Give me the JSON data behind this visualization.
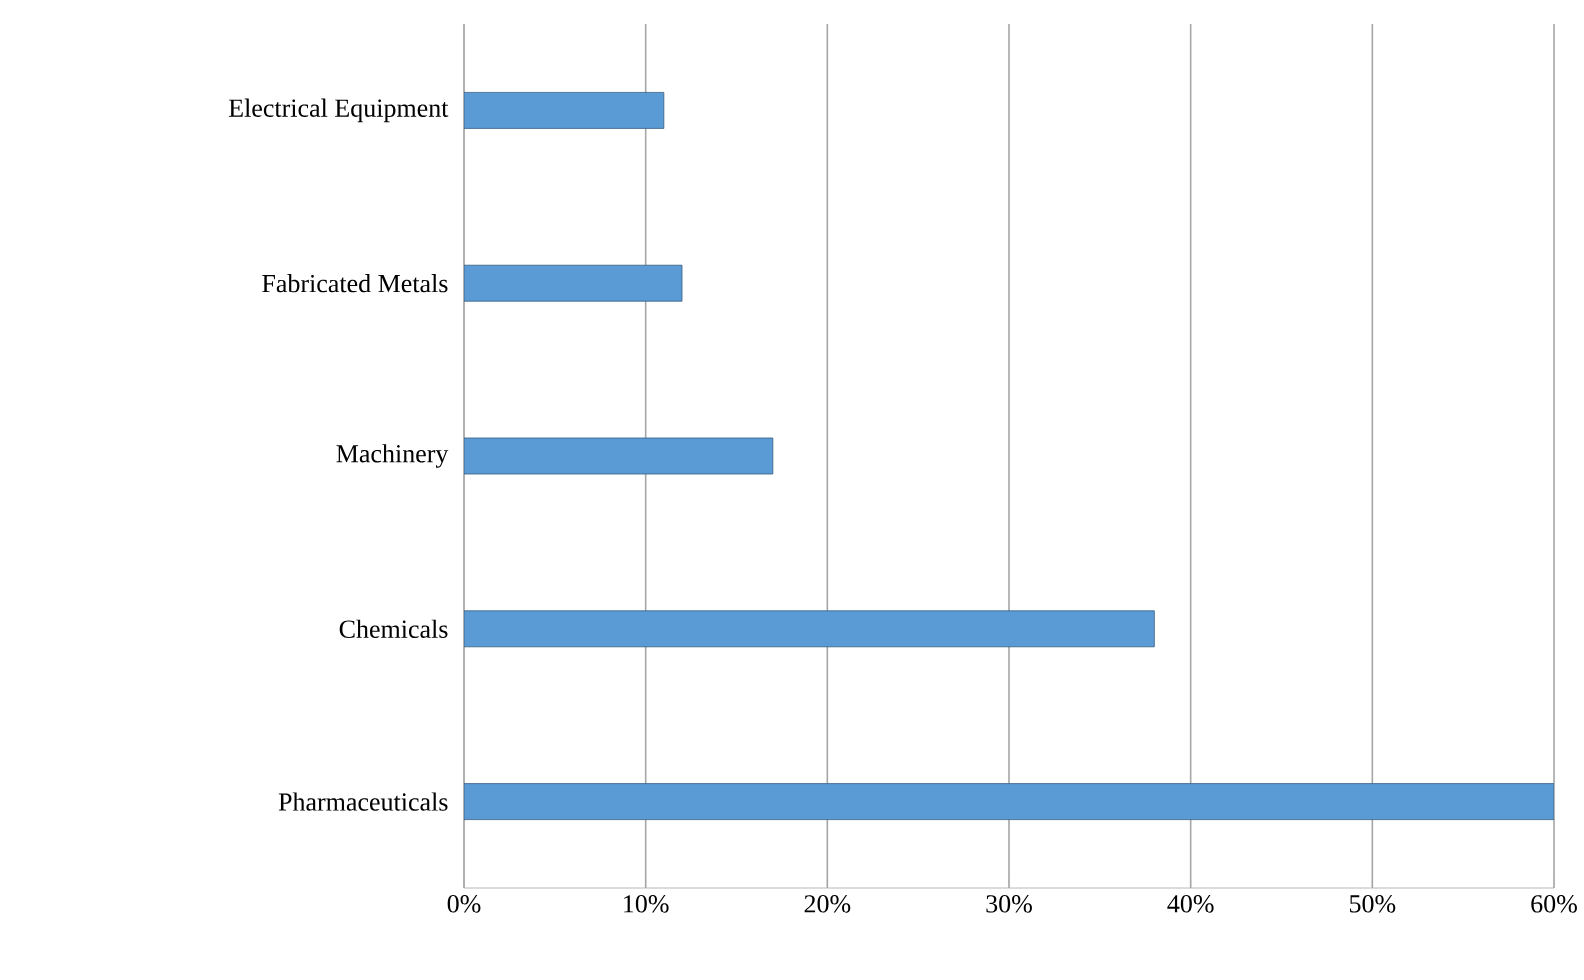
{
  "chart_data": {
    "type": "bar",
    "orientation": "horizontal",
    "categories": [
      "Electrical Equipment",
      "Fabricated Metals",
      "Machinery",
      "Chemicals",
      "Pharmaceuticals"
    ],
    "values": [
      11,
      12,
      17,
      38,
      60
    ],
    "color": "#5b9bd5",
    "xlim": [
      0,
      60
    ],
    "xticks": [
      {
        "value": 0,
        "label": "0%"
      },
      {
        "value": 10,
        "label": "10%"
      },
      {
        "value": 20,
        "label": "20%"
      },
      {
        "value": 30,
        "label": "30%"
      },
      {
        "value": 40,
        "label": "40%"
      },
      {
        "value": 50,
        "label": "50%"
      },
      {
        "value": 60,
        "label": "60%"
      }
    ],
    "grid": "x"
  }
}
